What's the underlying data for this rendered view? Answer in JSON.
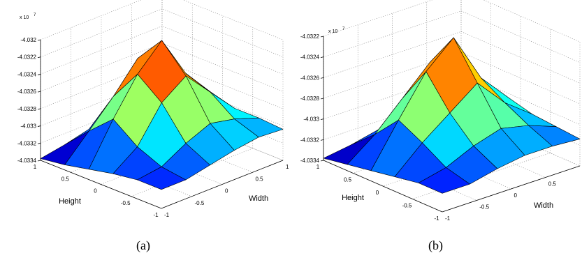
{
  "chart_data": [
    {
      "type": "surface",
      "caption": "(a)",
      "xlabel": "Width",
      "ylabel": "Height",
      "zlabel": "",
      "z_multiplier_label": "x 10",
      "z_multiplier_exponent": "7",
      "xlim": [
        -1,
        1
      ],
      "ylim": [
        -1,
        1
      ],
      "zlim": [
        -4.0334,
        -4.032
      ],
      "x_ticks": [
        "-1",
        "-0.5",
        "0",
        "0.5",
        "1"
      ],
      "y_ticks": [
        "1",
        "0.5",
        "0",
        "-0.5",
        "-1"
      ],
      "z_ticks": [
        {
          "value": -4.0334,
          "label": "-4.0334"
        },
        {
          "value": -4.0332,
          "label": "-4.0332"
        },
        {
          "value": -4.033,
          "label": "-4.033"
        },
        {
          "value": -4.0328,
          "label": "-4.0328"
        },
        {
          "value": -4.0326,
          "label": "-4.0326"
        },
        {
          "value": -4.0324,
          "label": "-4.0324"
        },
        {
          "value": -4.0322,
          "label": "-4.0322"
        },
        {
          "value": -4.032,
          "label": "-4.032"
        }
      ],
      "grid": true,
      "colormap": "jet",
      "x": [
        -1,
        -0.6,
        -0.2,
        0.2,
        0.6,
        1
      ],
      "y": [
        1,
        0.6,
        0.2,
        -0.2,
        -0.6,
        -1
      ],
      "z": [
        [
          -4.03338,
          -4.03333,
          -4.03326,
          -4.0332,
          -4.03316,
          -4.03314
        ],
        [
          -4.03334,
          -4.03306,
          -4.03277,
          -4.03244,
          -4.03266,
          -4.03284
        ],
        [
          -4.03328,
          -4.03281,
          -4.0324,
          -4.03212,
          -4.03262,
          -4.03294
        ],
        [
          -4.03322,
          -4.03302,
          -4.03262,
          -4.03242,
          -4.03272,
          -4.03302
        ],
        [
          -4.03318,
          -4.03314,
          -4.03298,
          -4.03286,
          -4.03292,
          -4.03302
        ],
        [
          -4.03318,
          -4.03318,
          -4.03312,
          -4.03306,
          -4.03302,
          -4.03304
        ]
      ]
    },
    {
      "type": "surface",
      "caption": "(b)",
      "xlabel": "Width",
      "ylabel": "Height",
      "zlabel": "",
      "z_multiplier_label": "x 10",
      "z_multiplier_exponent": "7",
      "xlim": [
        -1,
        1
      ],
      "ylim": [
        -1,
        1
      ],
      "zlim": [
        -4.0334,
        -4.0322
      ],
      "x_ticks": [
        "-1",
        "-0.5",
        "0",
        "0.5",
        "1"
      ],
      "y_ticks": [
        "1",
        "0.5",
        "0",
        "-0.5",
        "-1"
      ],
      "z_ticks": [
        {
          "value": -4.0334,
          "label": "-4.0334"
        },
        {
          "value": -4.0332,
          "label": "-4.0332"
        },
        {
          "value": -4.033,
          "label": "-4.033"
        },
        {
          "value": -4.0328,
          "label": "-4.0328"
        },
        {
          "value": -4.0326,
          "label": "-4.0326"
        },
        {
          "value": -4.0324,
          "label": "-4.0324"
        },
        {
          "value": -4.0322,
          "label": "-4.0322"
        }
      ],
      "grid": true,
      "colormap": "jet",
      "x": [
        -1,
        -0.6,
        -0.2,
        0.2,
        0.6,
        1
      ],
      "y": [
        1,
        0.6,
        0.2,
        -0.2,
        -0.6,
        -1
      ],
      "z": [
        [
          -4.03338,
          -4.03334,
          -4.03328,
          -4.03322,
          -4.03318,
          -4.03316
        ],
        [
          -4.03334,
          -4.03314,
          -4.03288,
          -4.03262,
          -4.03284,
          -4.033
        ],
        [
          -4.0333,
          -4.0329,
          -4.03252,
          -4.03228,
          -4.03276,
          -4.03304
        ],
        [
          -4.03326,
          -4.03302,
          -4.03282,
          -4.03262,
          -4.0329,
          -4.0331
        ],
        [
          -4.03322,
          -4.03316,
          -4.03304,
          -4.03296,
          -4.03302,
          -4.03312
        ],
        [
          -4.03322,
          -4.03322,
          -4.03316,
          -4.03312,
          -4.03312,
          -4.03314
        ]
      ]
    }
  ]
}
